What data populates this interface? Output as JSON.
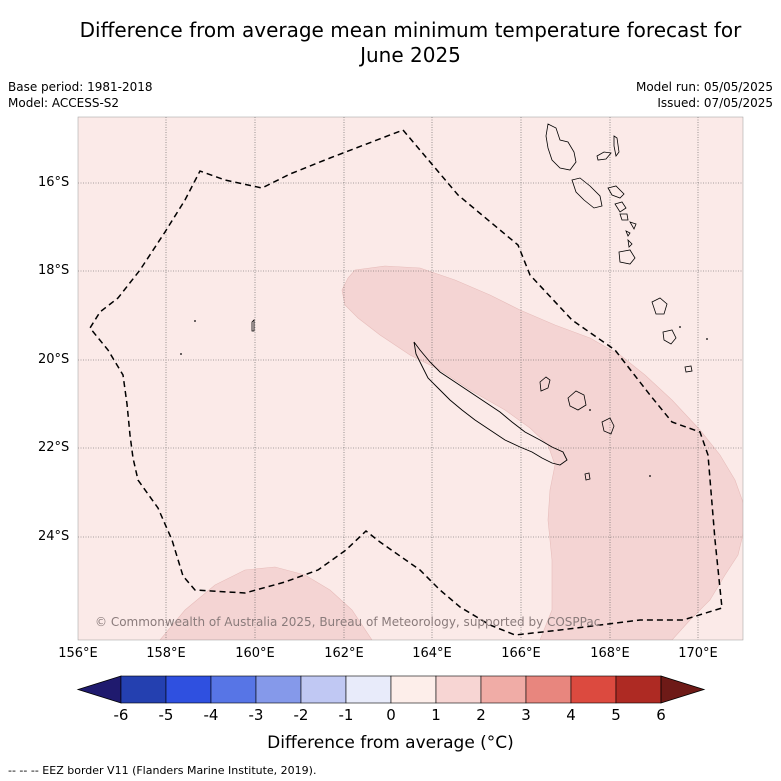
{
  "header": {
    "title_line1": "Difference from average mean minimum temperature forecast for",
    "title_line2": "June 2025",
    "base_period": "Base period: 1981-2018",
    "model": "Model: ACCESS-S2",
    "model_run": "Model run: 05/05/2025",
    "issued": "Issued: 07/05/2025"
  },
  "map": {
    "lat_ticks": [
      "16°S",
      "18°S",
      "20°S",
      "22°S",
      "24°S"
    ],
    "lon_ticks": [
      "156°E",
      "158°E",
      "160°E",
      "162°E",
      "164°E",
      "166°E",
      "168°E",
      "170°E"
    ],
    "copyright": "© Commonwealth of Australia 2025, Bureau of Meteorology, supported by COSPPac",
    "background_category": "0 to 1",
    "shaded_category": "1 to 2",
    "colors": {
      "zero_to_one": "#fbeae8",
      "one_to_two": "#f4d4d3",
      "eez_line": "#000000"
    }
  },
  "colorbar": {
    "labels": [
      "-6",
      "-5",
      "-4",
      "-3",
      "-2",
      "-1",
      "0",
      "1",
      "2",
      "3",
      "4",
      "5",
      "6"
    ],
    "colors": [
      "#1f1a6e",
      "#2440b0",
      "#2f50e0",
      "#5775e6",
      "#8599ea",
      "#c0c8f3",
      "#e8ebfa",
      "#fdeeea",
      "#f7d5d3",
      "#f0aca6",
      "#e8867e",
      "#dc4a3f",
      "#ae2a23",
      "#6e1a17"
    ],
    "title": "Difference from average (°C)"
  },
  "footer": {
    "legend": "--  --  -- EEZ border V11 (Flanders Marine Institute, 2019)."
  }
}
